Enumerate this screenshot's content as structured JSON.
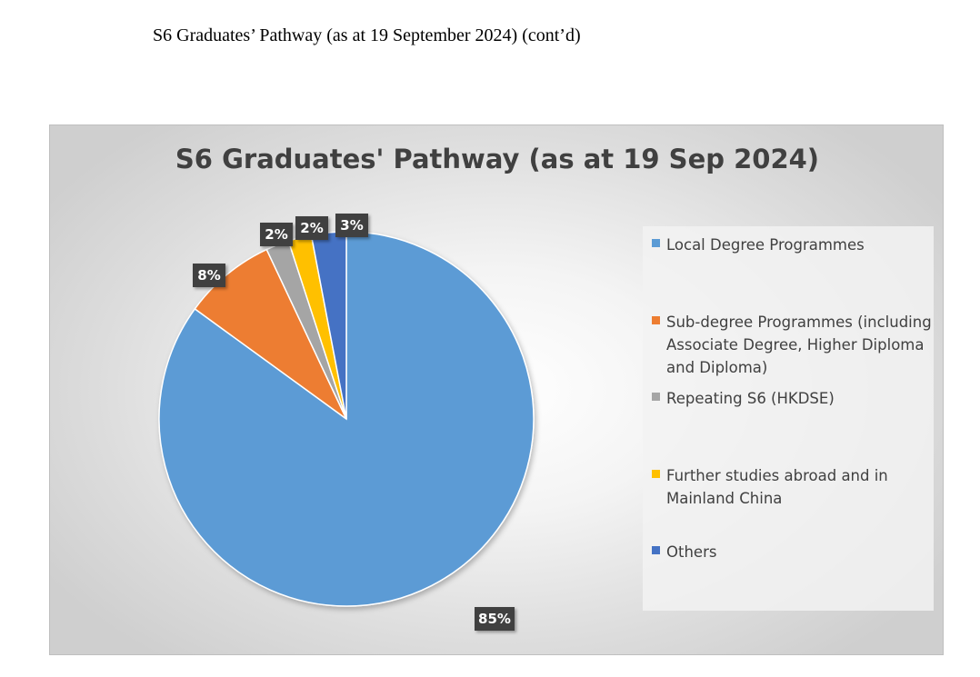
{
  "document": {
    "heading": "S6 Graduates’ Pathway (as at 19 September 2024) (cont’d)"
  },
  "chart_data": {
    "type": "pie",
    "title": "S6 Graduates' Pathway (as at 19 Sep 2024)",
    "legend_position": "right",
    "slices": [
      {
        "label": "Local Degree Programmes",
        "value": 85,
        "display": "85%",
        "color": "#5b9bd5"
      },
      {
        "label": "Sub-degree Programmes (including Associate Degree, Higher Diploma and Diploma)",
        "value": 8,
        "display": "8%",
        "color": "#ed7d31"
      },
      {
        "label": "Repeating S6 (HKDSE)",
        "value": 2,
        "display": "2%",
        "color": "#a5a5a5"
      },
      {
        "label": "Further studies abroad and in Mainland China",
        "value": 2,
        "display": "2%",
        "color": "#ffc000"
      },
      {
        "label": "Others",
        "value": 3,
        "display": "3%",
        "color": "#4472c4"
      }
    ]
  }
}
